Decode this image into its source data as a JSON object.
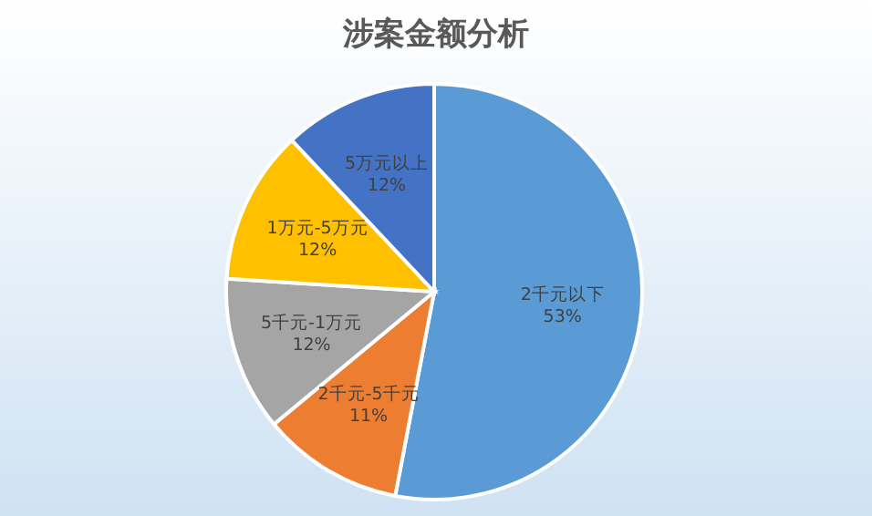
{
  "chart_data": {
    "type": "pie",
    "title": "涉案金额分析",
    "categories": [
      "2千元以下",
      "2千元-5千元",
      "5千元-1万元",
      "1万元-5万元",
      "5万元以上"
    ],
    "values": [
      53,
      11,
      12,
      12,
      12
    ],
    "colors": [
      "#5b9bd5",
      "#ed7d31",
      "#a5a5a5",
      "#ffc000",
      "#4472c4"
    ],
    "value_labels": [
      "53%",
      "11%",
      "12%",
      "12%",
      "12%"
    ],
    "legend": false
  }
}
